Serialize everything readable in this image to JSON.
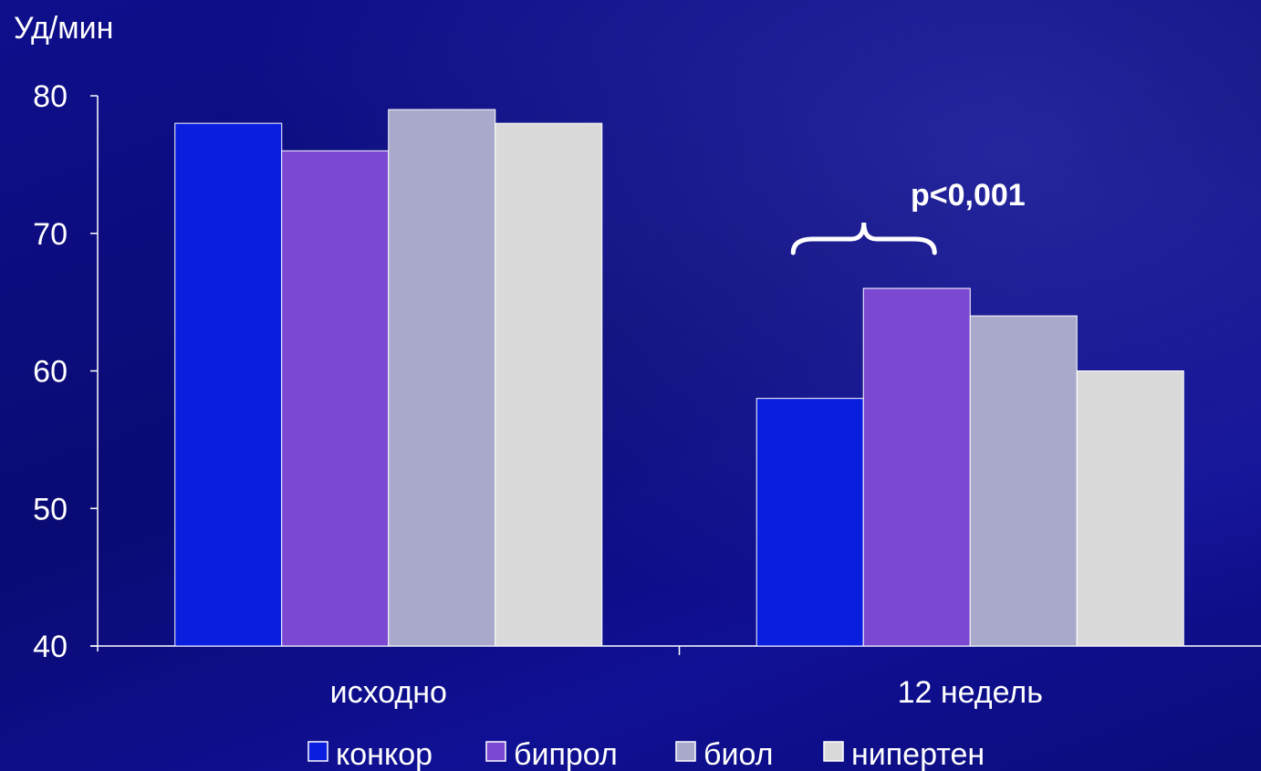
{
  "chart_data": {
    "type": "bar",
    "title": "",
    "xlabel": "",
    "ylabel": "Уд/мин",
    "ylim": [
      40,
      80
    ],
    "yticks": [
      40,
      50,
      60,
      70,
      80
    ],
    "categories": [
      "исходно",
      "12 недель"
    ],
    "series": [
      {
        "name": "конкор",
        "color": "#0a1ee0",
        "values": [
          78,
          58
        ]
      },
      {
        "name": "бипрол",
        "color": "#7b48d2",
        "values": [
          76,
          66
        ]
      },
      {
        "name": "биол",
        "color": "#a9aacb",
        "values": [
          79,
          64
        ]
      },
      {
        "name": "нипертен",
        "color": "#dadada",
        "values": [
          78,
          60
        ]
      }
    ],
    "legend": "bottom",
    "grid": false,
    "annotation": {
      "text": "p<0,001",
      "category": "12 недель",
      "brace_over_series": [
        "конкор",
        "бипрол"
      ]
    }
  }
}
